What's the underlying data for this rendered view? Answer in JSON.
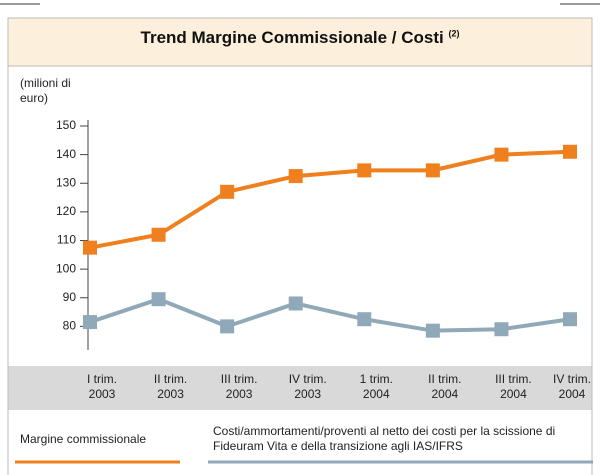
{
  "chart_data": {
    "type": "line",
    "title": "Trend Margine Commissionale / Costi",
    "title_note": "(2)",
    "ylabel": "(milioni di euro)",
    "categories": [
      "I trim. 2003",
      "II trim. 2003",
      "III trim. 2003",
      "IV trim. 2003",
      "1 trim. 2004",
      "II trim. 2004",
      "III trim. 2004",
      "IV trim. 2004"
    ],
    "series": [
      {
        "name": "Margine commissionale",
        "color": "#f07f1e",
        "values": [
          107.5,
          112,
          127,
          132.5,
          134.5,
          134.5,
          140,
          141
        ]
      },
      {
        "name": "Costi/ammortamenti/proventi al netto dei costi per la scissione di Fideuram Vita e della transizione agli IAS/IFRS",
        "color": "#8fa9b8",
        "values": [
          81.5,
          89.5,
          80,
          88,
          82.5,
          78.5,
          79,
          82.5
        ]
      }
    ],
    "ylim": [
      70,
      150
    ],
    "yticks": [
      80,
      90,
      100,
      110,
      120,
      130,
      140,
      150
    ],
    "grid": false
  }
}
